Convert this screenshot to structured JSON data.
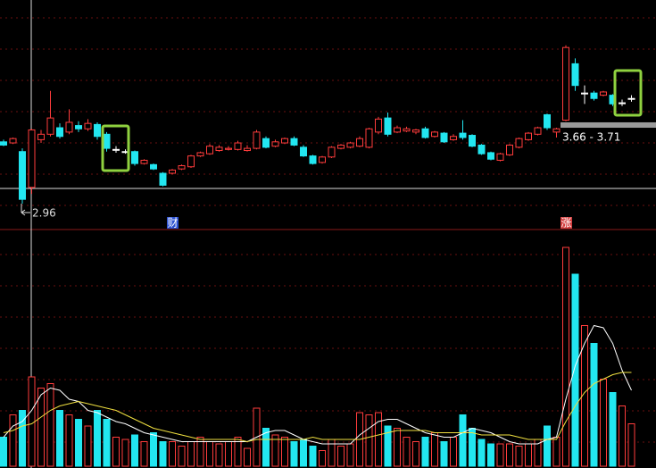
{
  "chart_data": {
    "type": "candlestick",
    "ylim": [
      2.9,
      4.6
    ],
    "up_color": "#ff3c3c",
    "down_color": "#22e6f0",
    "doji_color": "#ffffff",
    "ohlc": [
      [
        3.53,
        3.55,
        3.49,
        3.5
      ],
      [
        3.52,
        3.57,
        3.51,
        3.56
      ],
      [
        3.44,
        3.47,
        2.96,
        3.0
      ],
      [
        3.11,
        3.65,
        3.05,
        3.64
      ],
      [
        3.55,
        3.64,
        3.52,
        3.6
      ],
      [
        3.6,
        4.0,
        3.58,
        3.75
      ],
      [
        3.66,
        3.7,
        3.56,
        3.58
      ],
      [
        3.62,
        3.83,
        3.6,
        3.71
      ],
      [
        3.68,
        3.72,
        3.62,
        3.65
      ],
      [
        3.65,
        3.74,
        3.63,
        3.7
      ],
      [
        3.69,
        3.71,
        3.55,
        3.58
      ],
      [
        3.6,
        3.62,
        3.44,
        3.47
      ],
      [
        3.46,
        3.49,
        3.43,
        3.46
      ],
      [
        3.44,
        3.46,
        3.42,
        3.44
      ],
      [
        3.44,
        3.45,
        3.31,
        3.33
      ],
      [
        3.33,
        3.37,
        3.32,
        3.36
      ],
      [
        3.32,
        3.33,
        3.27,
        3.28
      ],
      [
        3.24,
        3.25,
        3.12,
        3.13
      ],
      [
        3.24,
        3.28,
        3.23,
        3.27
      ],
      [
        3.28,
        3.32,
        3.27,
        3.31
      ],
      [
        3.3,
        3.41,
        3.29,
        3.4
      ],
      [
        3.4,
        3.44,
        3.39,
        3.43
      ],
      [
        3.42,
        3.51,
        3.41,
        3.49
      ],
      [
        3.45,
        3.5,
        3.44,
        3.48
      ],
      [
        3.46,
        3.49,
        3.45,
        3.47
      ],
      [
        3.46,
        3.54,
        3.45,
        3.52
      ],
      [
        3.45,
        3.5,
        3.44,
        3.47
      ],
      [
        3.47,
        3.64,
        3.46,
        3.62
      ],
      [
        3.56,
        3.58,
        3.47,
        3.48
      ],
      [
        3.49,
        3.55,
        3.48,
        3.53
      ],
      [
        3.52,
        3.57,
        3.51,
        3.56
      ],
      [
        3.56,
        3.58,
        3.49,
        3.5
      ],
      [
        3.48,
        3.5,
        3.39,
        3.4
      ],
      [
        3.4,
        3.41,
        3.32,
        3.33
      ],
      [
        3.34,
        3.4,
        3.33,
        3.39
      ],
      [
        3.39,
        3.49,
        3.38,
        3.48
      ],
      [
        3.47,
        3.51,
        3.46,
        3.5
      ],
      [
        3.48,
        3.53,
        3.47,
        3.52
      ],
      [
        3.49,
        3.58,
        3.48,
        3.56
      ],
      [
        3.48,
        3.66,
        3.47,
        3.65
      ],
      [
        3.62,
        3.76,
        3.6,
        3.74
      ],
      [
        3.75,
        3.8,
        3.58,
        3.6
      ],
      [
        3.62,
        3.68,
        3.61,
        3.66
      ],
      [
        3.63,
        3.67,
        3.62,
        3.65
      ],
      [
        3.62,
        3.65,
        3.6,
        3.64
      ],
      [
        3.65,
        3.67,
        3.56,
        3.57
      ],
      [
        3.58,
        3.63,
        3.57,
        3.62
      ],
      [
        3.61,
        3.62,
        3.52,
        3.53
      ],
      [
        3.55,
        3.6,
        3.54,
        3.58
      ],
      [
        3.61,
        3.73,
        3.55,
        3.57
      ],
      [
        3.59,
        3.6,
        3.48,
        3.49
      ],
      [
        3.5,
        3.51,
        3.41,
        3.42
      ],
      [
        3.43,
        3.44,
        3.36,
        3.37
      ],
      [
        3.36,
        3.43,
        3.35,
        3.42
      ],
      [
        3.41,
        3.51,
        3.4,
        3.5
      ],
      [
        3.48,
        3.57,
        3.47,
        3.56
      ],
      [
        3.55,
        3.62,
        3.54,
        3.61
      ],
      [
        3.6,
        3.67,
        3.59,
        3.66
      ],
      [
        3.78,
        3.79,
        3.64,
        3.66
      ],
      [
        3.62,
        3.66,
        3.57,
        3.65
      ],
      [
        3.73,
        4.42,
        3.72,
        4.4
      ],
      [
        4.25,
        4.3,
        4.0,
        4.05
      ],
      [
        3.98,
        4.05,
        3.88,
        3.98
      ],
      [
        3.98,
        4.0,
        3.91,
        3.93
      ],
      [
        3.96,
        4.0,
        3.95,
        3.99
      ],
      [
        3.96,
        3.97,
        3.86,
        3.88
      ],
      [
        3.89,
        3.92,
        3.86,
        3.89
      ],
      [
        3.93,
        3.96,
        3.9,
        3.93
      ]
    ],
    "low_label": 2.96,
    "range_band": [
      3.66,
      3.71
    ],
    "range_label": "3.66 - 3.71",
    "events": [
      null,
      null,
      null,
      null,
      null,
      null,
      null,
      null,
      null,
      null,
      null,
      null,
      null,
      null,
      null,
      null,
      null,
      null,
      {
        "label": "财",
        "color": "#2a4fd0"
      },
      null,
      null,
      null,
      null,
      null,
      null,
      null,
      null,
      null,
      null,
      null,
      null,
      null,
      null,
      null,
      null,
      null,
      null,
      null,
      null,
      null,
      null,
      null,
      null,
      null,
      null,
      null,
      null,
      null,
      null,
      null,
      null,
      null,
      null,
      null,
      null,
      null,
      null,
      null,
      null,
      null,
      {
        "label": "涨",
        "color": "#d23c3c"
      },
      null,
      null,
      null,
      null,
      null,
      null,
      null
    ],
    "volume_ylim": [
      0,
      100
    ],
    "volume": [
      13,
      23,
      25,
      40,
      35,
      37,
      25,
      23,
      21,
      18,
      25,
      21,
      13,
      12,
      14,
      11,
      15,
      11,
      11,
      9,
      11,
      13,
      11,
      10,
      11,
      13,
      8,
      26,
      17,
      14,
      13,
      11,
      12,
      9,
      7,
      12,
      9,
      10,
      24,
      23,
      24,
      18,
      17,
      13,
      11,
      13,
      15,
      11,
      13,
      23,
      17,
      12,
      10,
      10,
      10,
      9,
      10,
      12,
      18,
      13,
      98,
      86,
      63,
      55,
      39,
      33,
      27,
      19
    ],
    "volume_lines": [
      {
        "color": "#ffffff",
        "values": [
          13,
          18,
          20,
          25,
          32,
          35,
          34,
          30,
          29,
          25,
          24,
          22,
          20,
          19,
          17,
          15,
          14,
          13,
          12,
          11,
          11,
          11,
          11,
          11,
          11,
          11,
          11,
          13,
          15,
          16,
          16,
          14,
          12,
          11,
          10,
          10,
          10,
          10,
          14,
          17,
          20,
          21,
          21,
          19,
          17,
          15,
          14,
          13,
          13,
          15,
          17,
          16,
          15,
          13,
          11,
          10,
          10,
          10,
          12,
          13,
          30,
          45,
          55,
          63,
          62,
          55,
          43,
          34
        ]
      },
      {
        "color": "#f0e040",
        "values": [
          15,
          16,
          18,
          19,
          22,
          25,
          27,
          28,
          29,
          28,
          27,
          26,
          25,
          23,
          21,
          19,
          17,
          16,
          15,
          14,
          13,
          12,
          12,
          12,
          12,
          12,
          11,
          12,
          12,
          12,
          12,
          12,
          12,
          13,
          12,
          12,
          12,
          12,
          12,
          13,
          14,
          15,
          16,
          16,
          16,
          16,
          15,
          15,
          15,
          15,
          15,
          14,
          14,
          14,
          14,
          13,
          12,
          12,
          12,
          12,
          20,
          27,
          33,
          37,
          39,
          41,
          42,
          42
        ]
      }
    ]
  }
}
